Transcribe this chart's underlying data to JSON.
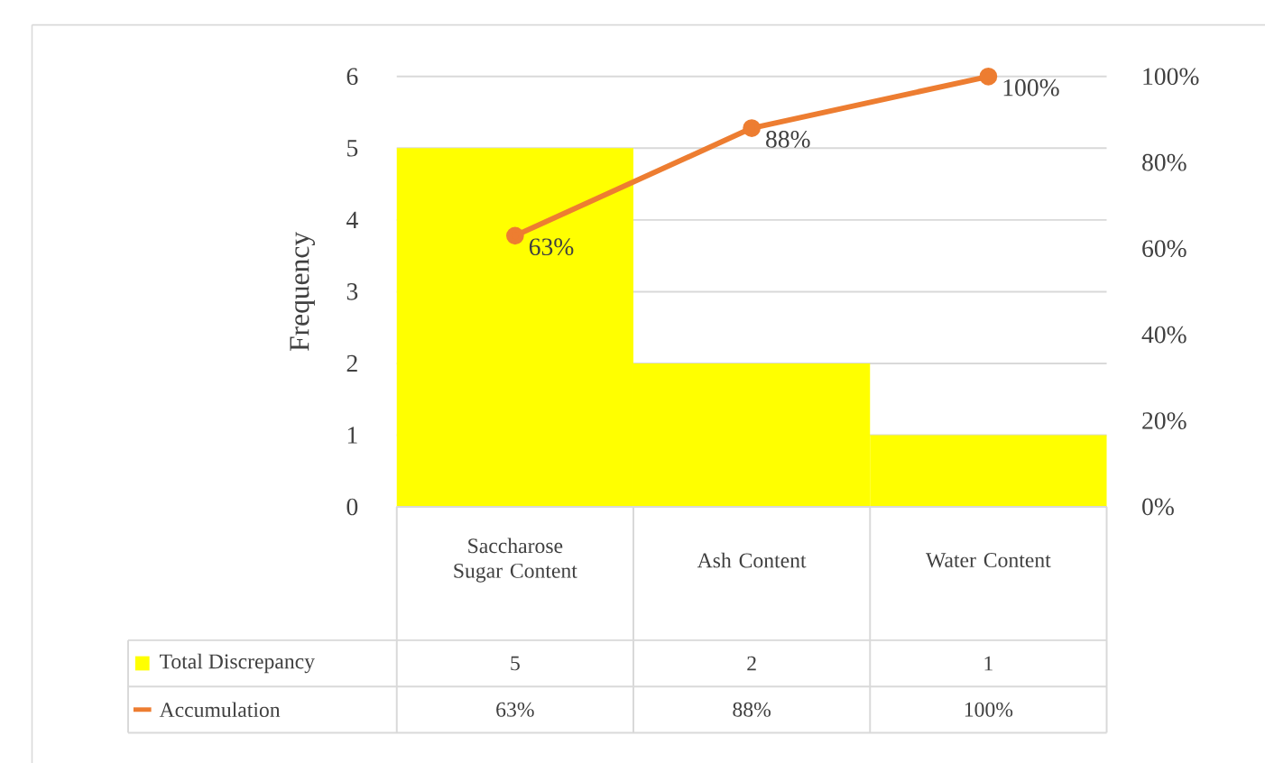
{
  "chart_data": {
    "type": "bar",
    "ylabel": "Frequency",
    "categories": [
      "Saccharose Sugar Content",
      "Ash Content",
      "Water Content"
    ],
    "series": [
      {
        "name": "Total Discrepancy",
        "color": "#ffff00",
        "values": [
          5,
          2,
          1
        ],
        "value_labels": [
          "5",
          "2",
          "1"
        ]
      },
      {
        "name": "Accumulation",
        "type": "line",
        "axis": "y2",
        "color": "#ed7d31",
        "marker": "circle",
        "values": [
          63,
          88,
          100
        ],
        "value_labels": [
          "63%",
          "88%",
          "100%"
        ]
      }
    ],
    "ylim": [
      0,
      6
    ],
    "yticks": [
      0,
      1,
      2,
      3,
      4,
      5,
      6
    ],
    "y2lim": [
      0,
      100
    ],
    "y2ticks": [
      {
        "value": 0,
        "label": "0%"
      },
      {
        "value": 20,
        "label": "20%"
      },
      {
        "value": 40,
        "label": "40%"
      },
      {
        "value": 60,
        "label": "60%"
      },
      {
        "value": 80,
        "label": "80%"
      },
      {
        "value": 100,
        "label": "100%"
      }
    ],
    "grid": "y",
    "legend": "bottom"
  }
}
